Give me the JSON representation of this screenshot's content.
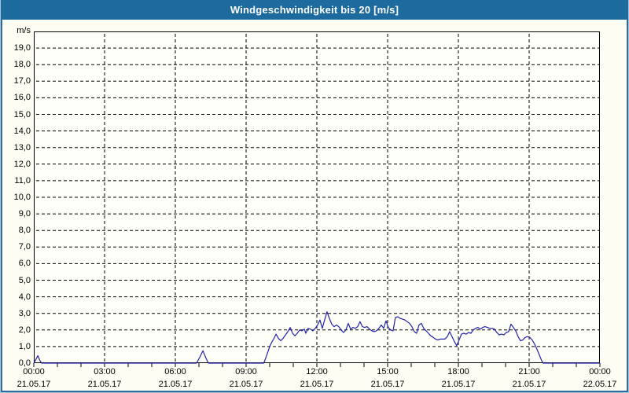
{
  "window": {
    "title": "Windgeschwindigkeit bis 20 [m/s]"
  },
  "colors": {
    "titlebar": "#1d6a9e",
    "frame": "#2e6ca0",
    "frame_outer": "#aac4dc",
    "background": "#fdfdf4",
    "plot_background": "#fffffa",
    "grid": "#000000",
    "axis": "#000000",
    "line": "#2222aa",
    "text": "#000000",
    "title_text": "#ffffff"
  },
  "chart_data": {
    "type": "line",
    "title": "Windgeschwindigkeit bis 20 [m/s]",
    "y_unit": "m/s",
    "ylabel": "",
    "xlabel": "",
    "ylim": [
      0,
      20
    ],
    "y_tick_step": 1,
    "y_tick_labels": [
      "0,0",
      "1,0",
      "2,0",
      "3,0",
      "4,0",
      "5,0",
      "6,0",
      "7,0",
      "8,0",
      "9,0",
      "10,0",
      "11,0",
      "12,0",
      "13,0",
      "14,0",
      "15,0",
      "16,0",
      "17,0",
      "18,0",
      "19,0"
    ],
    "xlim_hours": [
      0,
      24
    ],
    "x_minor_tick_hours": 1,
    "x_ticks": [
      {
        "hour": 0,
        "time": "00:00",
        "date": "21.05.17"
      },
      {
        "hour": 3,
        "time": "03:00",
        "date": "21.05.17"
      },
      {
        "hour": 6,
        "time": "06:00",
        "date": "21.05.17"
      },
      {
        "hour": 9,
        "time": "09:00",
        "date": "21.05.17"
      },
      {
        "hour": 12,
        "time": "12:00",
        "date": "21.05.17"
      },
      {
        "hour": 15,
        "time": "15:00",
        "date": "21.05.17"
      },
      {
        "hour": 18,
        "time": "18:00",
        "date": "21.05.17"
      },
      {
        "hour": 21,
        "time": "21:00",
        "date": "21.05.17"
      },
      {
        "hour": 24,
        "time": "00:00",
        "date": "22.05.17"
      }
    ],
    "grid": "dashed",
    "legend": "none",
    "series": [
      {
        "name": "Windgeschwindigkeit",
        "color": "#2222aa",
        "points_hours_mps": [
          [
            0.0,
            0
          ],
          [
            0.08,
            0.2
          ],
          [
            0.17,
            0.45
          ],
          [
            0.26,
            0.15
          ],
          [
            0.33,
            0
          ],
          [
            1,
            0
          ],
          [
            2,
            0
          ],
          [
            3,
            0
          ],
          [
            4,
            0
          ],
          [
            5,
            0
          ],
          [
            6,
            0
          ],
          [
            6.9,
            0
          ],
          [
            7.05,
            0.4
          ],
          [
            7.17,
            0.75
          ],
          [
            7.3,
            0.3
          ],
          [
            7.4,
            0
          ],
          [
            8,
            0
          ],
          [
            9,
            0
          ],
          [
            9.75,
            0
          ],
          [
            9.83,
            0.3
          ],
          [
            9.93,
            0.7
          ],
          [
            10.0,
            1.0
          ],
          [
            10.1,
            1.3
          ],
          [
            10.17,
            1.45
          ],
          [
            10.27,
            1.75
          ],
          [
            10.37,
            1.5
          ],
          [
            10.47,
            1.35
          ],
          [
            10.57,
            1.5
          ],
          [
            10.67,
            1.7
          ],
          [
            10.77,
            1.9
          ],
          [
            10.87,
            2.15
          ],
          [
            10.97,
            1.8
          ],
          [
            11.07,
            1.65
          ],
          [
            11.17,
            1.8
          ],
          [
            11.27,
            2.0
          ],
          [
            11.37,
            1.95
          ],
          [
            11.47,
            2.05
          ],
          [
            11.53,
            1.8
          ],
          [
            11.63,
            2.1
          ],
          [
            11.73,
            2.05
          ],
          [
            11.83,
            1.95
          ],
          [
            11.93,
            2.1
          ],
          [
            12.03,
            2.3
          ],
          [
            12.13,
            2.6
          ],
          [
            12.23,
            2.1
          ],
          [
            12.33,
            2.6
          ],
          [
            12.43,
            3.1
          ],
          [
            12.53,
            2.7
          ],
          [
            12.63,
            2.35
          ],
          [
            12.73,
            2.2
          ],
          [
            12.83,
            2.3
          ],
          [
            12.93,
            2.2
          ],
          [
            13.03,
            2.0
          ],
          [
            13.13,
            1.85
          ],
          [
            13.23,
            2.0
          ],
          [
            13.33,
            2.4
          ],
          [
            13.43,
            2.05
          ],
          [
            13.53,
            2.15
          ],
          [
            13.63,
            2.1
          ],
          [
            13.73,
            2.2
          ],
          [
            13.83,
            2.5
          ],
          [
            13.93,
            2.2
          ],
          [
            14.03,
            2.15
          ],
          [
            14.13,
            2.2
          ],
          [
            14.23,
            2.05
          ],
          [
            14.33,
            1.95
          ],
          [
            14.43,
            1.9
          ],
          [
            14.53,
            1.95
          ],
          [
            14.63,
            2.1
          ],
          [
            14.73,
            2.3
          ],
          [
            14.83,
            2.1
          ],
          [
            14.93,
            2.55
          ],
          [
            15.03,
            2.15
          ],
          [
            15.13,
            2.0
          ],
          [
            15.23,
            1.95
          ],
          [
            15.33,
            2.75
          ],
          [
            15.43,
            2.8
          ],
          [
            15.53,
            2.7
          ],
          [
            15.63,
            2.65
          ],
          [
            15.73,
            2.6
          ],
          [
            15.83,
            2.5
          ],
          [
            15.93,
            2.4
          ],
          [
            16.03,
            2.2
          ],
          [
            16.13,
            1.9
          ],
          [
            16.23,
            1.8
          ],
          [
            16.33,
            2.3
          ],
          [
            16.43,
            2.4
          ],
          [
            16.53,
            2.1
          ],
          [
            16.63,
            1.95
          ],
          [
            16.73,
            1.8
          ],
          [
            16.83,
            1.65
          ],
          [
            16.93,
            1.55
          ],
          [
            17.03,
            1.45
          ],
          [
            17.13,
            1.4
          ],
          [
            17.23,
            1.45
          ],
          [
            17.33,
            1.45
          ],
          [
            17.43,
            1.45
          ],
          [
            17.53,
            1.6
          ],
          [
            17.63,
            1.9
          ],
          [
            17.73,
            1.6
          ],
          [
            17.83,
            1.3
          ],
          [
            17.93,
            1.05
          ],
          [
            18.03,
            1.4
          ],
          [
            18.13,
            1.75
          ],
          [
            18.23,
            1.8
          ],
          [
            18.33,
            1.75
          ],
          [
            18.43,
            1.85
          ],
          [
            18.53,
            1.8
          ],
          [
            18.63,
            2.0
          ],
          [
            18.73,
            2.1
          ],
          [
            18.83,
            2.15
          ],
          [
            18.93,
            2.05
          ],
          [
            19.03,
            2.15
          ],
          [
            19.13,
            2.2
          ],
          [
            19.23,
            2.15
          ],
          [
            19.33,
            2.1
          ],
          [
            19.43,
            2.1
          ],
          [
            19.53,
            2.05
          ],
          [
            19.63,
            1.85
          ],
          [
            19.73,
            1.7
          ],
          [
            19.83,
            1.75
          ],
          [
            19.93,
            1.7
          ],
          [
            20.03,
            1.85
          ],
          [
            20.13,
            1.9
          ],
          [
            20.23,
            2.35
          ],
          [
            20.33,
            2.15
          ],
          [
            20.43,
            1.95
          ],
          [
            20.53,
            1.6
          ],
          [
            20.63,
            1.35
          ],
          [
            20.73,
            1.4
          ],
          [
            20.83,
            1.55
          ],
          [
            20.93,
            1.6
          ],
          [
            21.03,
            1.55
          ],
          [
            21.13,
            1.4
          ],
          [
            21.23,
            1.15
          ],
          [
            21.33,
            0.85
          ],
          [
            21.43,
            0.5
          ],
          [
            21.53,
            0.15
          ],
          [
            21.6,
            0
          ],
          [
            22,
            0
          ],
          [
            23,
            0
          ],
          [
            24,
            0
          ]
        ]
      }
    ]
  }
}
